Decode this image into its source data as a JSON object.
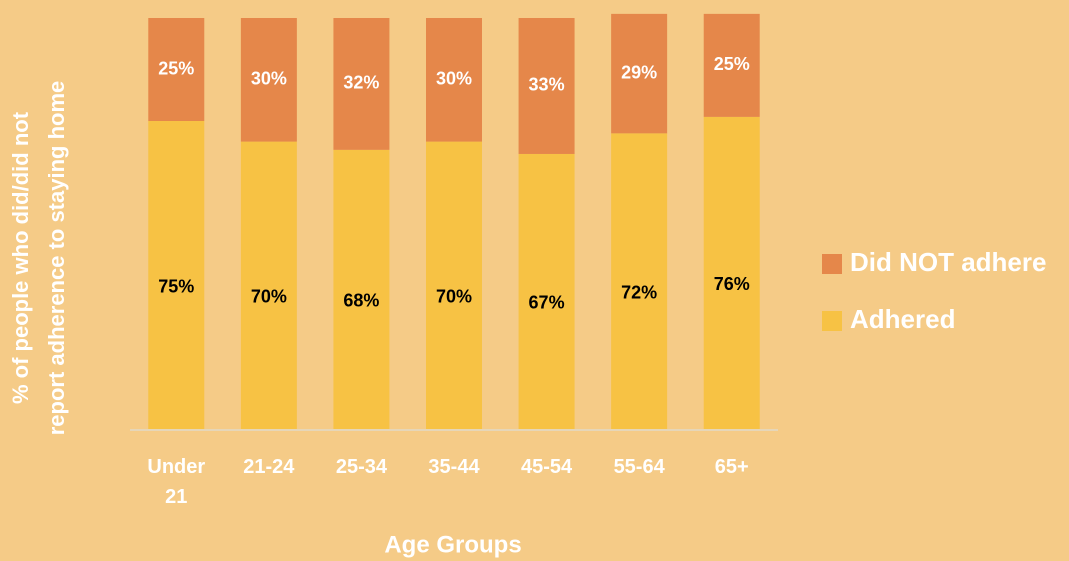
{
  "chart_data": {
    "type": "stacked_bar",
    "categories": [
      "Under 21",
      "21-24",
      "25-34",
      "35-44",
      "45-54",
      "55-64",
      "65+"
    ],
    "series": [
      {
        "name": "Adhered",
        "color": "#f7c244",
        "values": [
          75,
          70,
          68,
          70,
          67,
          72,
          76
        ],
        "value_labels": [
          "75%",
          "70%",
          "68%",
          "70%",
          "67%",
          "72%",
          "76%"
        ]
      },
      {
        "name": "Did NOT adhere",
        "color": "#e5874a",
        "values": [
          25,
          30,
          32,
          30,
          33,
          29,
          25
        ],
        "value_labels": [
          "25%",
          "30%",
          "32%",
          "30%",
          "33%",
          "29%",
          "25%"
        ]
      }
    ],
    "ylim": [
      0,
      100
    ],
    "x_label": "Age Groups",
    "y_label": [
      "% of people who did/did not",
      "report adherence to staying home"
    ]
  }
}
